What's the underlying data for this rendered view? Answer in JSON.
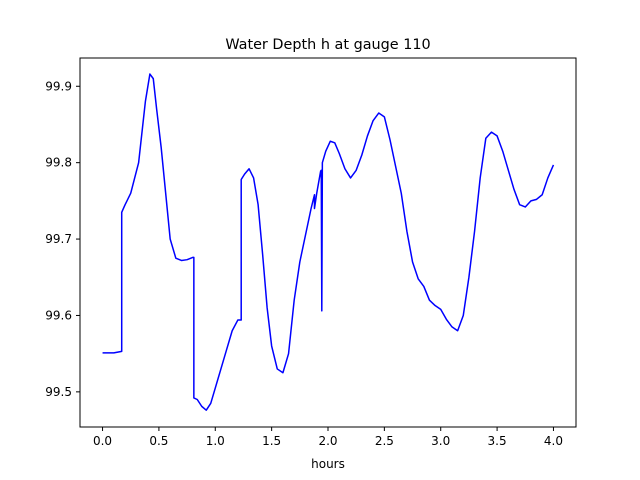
{
  "chart_data": {
    "type": "line",
    "title": "Water Depth h at gauge 110",
    "xlabel": "hours",
    "ylabel": "",
    "xlim": [
      -0.2,
      4.2
    ],
    "ylim": [
      99.454,
      99.937
    ],
    "x_ticks": [
      0.0,
      0.5,
      1.0,
      1.5,
      2.0,
      2.5,
      3.0,
      3.5,
      4.0
    ],
    "x_tick_labels": [
      "0.0",
      "0.5",
      "1.0",
      "1.5",
      "2.0",
      "2.5",
      "3.0",
      "3.5",
      "4.0"
    ],
    "y_ticks": [
      99.5,
      99.6,
      99.7,
      99.8,
      99.9
    ],
    "y_tick_labels": [
      "99.5",
      "99.6",
      "99.7",
      "99.8",
      "99.9"
    ],
    "grid": false,
    "legend": "none",
    "series": [
      {
        "color": "#0000ff",
        "x": [
          0.0,
          0.1,
          0.17,
          0.17,
          0.2,
          0.25,
          0.32,
          0.38,
          0.42,
          0.45,
          0.48,
          0.52,
          0.56,
          0.6,
          0.65,
          0.7,
          0.75,
          0.8,
          0.81,
          0.81,
          0.84,
          0.88,
          0.92,
          0.96,
          1.0,
          1.05,
          1.1,
          1.15,
          1.2,
          1.23,
          1.23,
          1.26,
          1.3,
          1.34,
          1.38,
          1.42,
          1.46,
          1.5,
          1.55,
          1.6,
          1.65,
          1.7,
          1.75,
          1.8,
          1.85,
          1.88,
          1.88,
          1.9,
          1.93,
          1.935,
          1.94,
          1.945,
          1.95,
          1.98,
          2.02,
          2.06,
          2.1,
          2.15,
          2.2,
          2.25,
          2.3,
          2.35,
          2.4,
          2.45,
          2.5,
          2.55,
          2.6,
          2.65,
          2.7,
          2.75,
          2.8,
          2.85,
          2.9,
          2.95,
          3.0,
          3.05,
          3.1,
          3.15,
          3.2,
          3.25,
          3.3,
          3.35,
          3.4,
          3.45,
          3.5,
          3.55,
          3.6,
          3.65,
          3.7,
          3.75,
          3.8,
          3.85,
          3.9,
          3.95,
          4.0
        ],
        "y": [
          99.551,
          99.551,
          99.553,
          99.735,
          99.745,
          99.76,
          99.8,
          99.88,
          99.916,
          99.91,
          99.87,
          99.82,
          99.76,
          99.7,
          99.675,
          99.672,
          99.673,
          99.676,
          99.676,
          99.492,
          99.49,
          99.481,
          99.476,
          99.485,
          99.505,
          99.53,
          99.555,
          99.58,
          99.594,
          99.594,
          99.778,
          99.785,
          99.792,
          99.78,
          99.745,
          99.68,
          99.61,
          99.56,
          99.53,
          99.525,
          99.55,
          99.62,
          99.67,
          99.705,
          99.74,
          99.758,
          99.74,
          99.76,
          99.785,
          99.789,
          99.79,
          99.606,
          99.8,
          99.815,
          99.828,
          99.826,
          99.812,
          99.792,
          99.78,
          99.79,
          99.81,
          99.835,
          99.855,
          99.865,
          99.86,
          99.83,
          99.795,
          99.76,
          99.71,
          99.67,
          99.648,
          99.638,
          99.62,
          99.613,
          99.608,
          99.595,
          99.585,
          99.58,
          99.6,
          99.65,
          99.71,
          99.78,
          99.832,
          99.84,
          99.835,
          99.815,
          99.79,
          99.765,
          99.745,
          99.742,
          99.75,
          99.752,
          99.758,
          99.78,
          99.797
        ]
      }
    ]
  }
}
